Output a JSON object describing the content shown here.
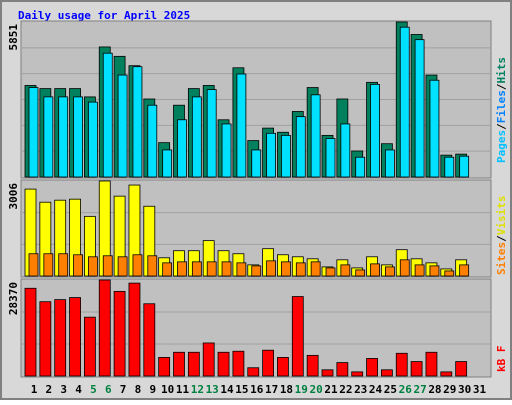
{
  "title": "Daily usage for April 2025",
  "days": [
    "1",
    "2",
    "3",
    "4",
    "5",
    "6",
    "7",
    "8",
    "9",
    "10",
    "11",
    "12",
    "13",
    "14",
    "15",
    "16",
    "17",
    "18",
    "19",
    "20",
    "21",
    "22",
    "23",
    "24",
    "25",
    "26",
    "27",
    "28",
    "29",
    "30",
    "31"
  ],
  "day_colors": [
    "#000000",
    "#000000",
    "#000000",
    "#000000",
    "#008040",
    "#008040",
    "#000000",
    "#000000",
    "#000000",
    "#000000",
    "#000000",
    "#008040",
    "#008040",
    "#000000",
    "#000000",
    "#000000",
    "#000000",
    "#000000",
    "#008040",
    "#008040",
    "#000000",
    "#000000",
    "#000000",
    "#000000",
    "#000000",
    "#008040",
    "#008040",
    "#000000",
    "#000000",
    "#000000",
    "#000000"
  ],
  "chart_data": [
    {
      "type": "bar",
      "ylim": [
        0,
        5851
      ],
      "yticks": [
        5851
      ],
      "right_label": [
        {
          "text": "Pages",
          "color": "#00c0ff"
        },
        {
          "text": "/",
          "color": "#000000"
        },
        {
          "text": "Files",
          "color": "#0080ff"
        },
        {
          "text": "/",
          "color": "#000000"
        },
        {
          "text": "Hits",
          "color": "#008060"
        }
      ],
      "series": [
        {
          "color": "#00805c",
          "values": [
            3456,
            3338,
            3338,
            3338,
            3024,
            4909,
            4555,
            4202,
            2945,
            1296,
            2710,
            3338,
            3456,
            2160,
            4123,
            1374,
            1846,
            1689,
            2474,
            3377,
            1571,
            2945,
            982,
            3574,
            1257,
            5851,
            5380,
            3848,
            825,
            864,
            null
          ]
        },
        {
          "color": "#00e0ff",
          "values": [
            3377,
            3024,
            3024,
            3024,
            2827,
            4673,
            3848,
            4163,
            2710,
            1021,
            2160,
            3024,
            3299,
            2003,
            3888,
            1021,
            1649,
            1571,
            2278,
            3102,
            1453,
            2003,
            746,
            3495,
            1021,
            5655,
            5184,
            3652,
            746,
            785,
            null
          ]
        }
      ]
    },
    {
      "type": "bar",
      "ylim": [
        0,
        3006
      ],
      "yticks": [
        3006
      ],
      "right_label": [
        {
          "text": "Sites",
          "color": "#ff8000"
        },
        {
          "text": "/",
          "color": "#000000"
        },
        {
          "text": "Visits",
          "color": "#e0e000"
        }
      ],
      "series": [
        {
          "color": "#ffff00",
          "values": [
            2750,
            2335,
            2399,
            2431,
            1887,
            3006,
            2527,
            2878,
            2207,
            576,
            800,
            800,
            1119,
            800,
            704,
            352,
            864,
            672,
            608,
            544,
            288,
            512,
            256,
            608,
            352,
            832,
            544,
            416,
            224,
            512,
            null
          ]
        },
        {
          "color": "#ff8000",
          "values": [
            704,
            704,
            704,
            672,
            608,
            640,
            608,
            672,
            640,
            416,
            448,
            448,
            448,
            448,
            416,
            320,
            480,
            448,
            416,
            448,
            256,
            352,
            192,
            384,
            288,
            512,
            352,
            320,
            160,
            352,
            null
          ]
        }
      ]
    },
    {
      "type": "bar",
      "ylim": [
        0,
        28370
      ],
      "yticks": [
        28370
      ],
      "right_label": [
        {
          "text": "kB F",
          "color": "#ff0000"
        }
      ],
      "series": [
        {
          "color": "#ff0000",
          "values": [
            25925,
            21960,
            22570,
            23180,
            17385,
            28370,
            25010,
            27450,
            21350,
            5490,
            7015,
            7015,
            9760,
            7015,
            7320,
            2440,
            7625,
            5490,
            23485,
            6100,
            1830,
            3965,
            1220,
            5185,
            1830,
            6710,
            4270,
            7015,
            1220,
            4270,
            null
          ]
        }
      ]
    }
  ]
}
